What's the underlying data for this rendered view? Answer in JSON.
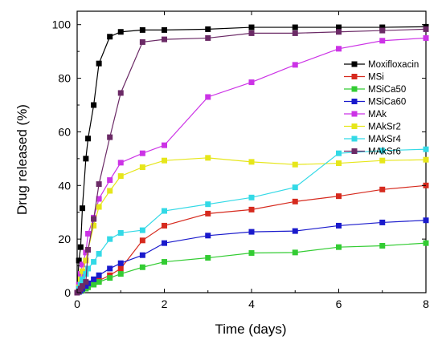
{
  "chart_data": {
    "type": "line",
    "title": "",
    "xlabel": "Time (days)",
    "ylabel": "Drug released (%)",
    "xlim": [
      0,
      8
    ],
    "ylim": [
      0,
      105
    ],
    "xticks": [
      0,
      2,
      4,
      6,
      8
    ],
    "yticks": [
      0,
      20,
      40,
      60,
      80,
      100
    ],
    "x_tick_labels": [
      "0",
      "2",
      "4",
      "6",
      "8"
    ],
    "y_tick_labels": [
      "0",
      "20",
      "40",
      "60",
      "80",
      "100"
    ],
    "grid": false,
    "legend_position": "right",
    "series": [
      {
        "name": "Moxifloxacin",
        "color": "#000000",
        "marker": "square",
        "points": [
          [
            0,
            0
          ],
          [
            0.04,
            12
          ],
          [
            0.08,
            17
          ],
          [
            0.12,
            31.5
          ],
          [
            0.2,
            50
          ],
          [
            0.25,
            57.5
          ],
          [
            0.38,
            70
          ],
          [
            0.5,
            85.5
          ],
          [
            0.75,
            95.5
          ],
          [
            1,
            97.3
          ],
          [
            1.5,
            98
          ],
          [
            2,
            98
          ],
          [
            3,
            98.3
          ],
          [
            4,
            99
          ],
          [
            5,
            99
          ],
          [
            6,
            99
          ],
          [
            7,
            99
          ],
          [
            8,
            99.2
          ]
        ]
      },
      {
        "name": "MSi",
        "color": "#d62a1e",
        "marker": "square",
        "points": [
          [
            0,
            0
          ],
          [
            0.04,
            0.5
          ],
          [
            0.08,
            1
          ],
          [
            0.12,
            1.5
          ],
          [
            0.2,
            2
          ],
          [
            0.25,
            2.5
          ],
          [
            0.38,
            3.5
          ],
          [
            0.5,
            4.5
          ],
          [
            0.75,
            6.5
          ],
          [
            1,
            9
          ],
          [
            1.5,
            19.5
          ],
          [
            2,
            25
          ],
          [
            3,
            29.5
          ],
          [
            4,
            31
          ],
          [
            5,
            34
          ],
          [
            6,
            36
          ],
          [
            7,
            38.5
          ],
          [
            8,
            40
          ]
        ]
      },
      {
        "name": "MSiCa50",
        "color": "#33cc33",
        "marker": "square",
        "points": [
          [
            0,
            0
          ],
          [
            0.04,
            0.3
          ],
          [
            0.08,
            0.6
          ],
          [
            0.12,
            1
          ],
          [
            0.2,
            1.5
          ],
          [
            0.25,
            2
          ],
          [
            0.38,
            3
          ],
          [
            0.5,
            4
          ],
          [
            0.75,
            5.5
          ],
          [
            1,
            7
          ],
          [
            1.5,
            9.5
          ],
          [
            2,
            11.5
          ],
          [
            3,
            13
          ],
          [
            4,
            14.8
          ],
          [
            5,
            15
          ],
          [
            6,
            17
          ],
          [
            7,
            17.5
          ],
          [
            8,
            18.5
          ]
        ]
      },
      {
        "name": "MSiCa60",
        "color": "#1a1acc",
        "marker": "square",
        "points": [
          [
            0,
            0
          ],
          [
            0.04,
            0.3
          ],
          [
            0.08,
            0.8
          ],
          [
            0.12,
            1.5
          ],
          [
            0.2,
            2.5
          ],
          [
            0.25,
            3.5
          ],
          [
            0.38,
            5
          ],
          [
            0.5,
            6.5
          ],
          [
            0.75,
            9
          ],
          [
            1,
            11
          ],
          [
            1.5,
            14
          ],
          [
            2,
            18.5
          ],
          [
            3,
            21.3
          ],
          [
            4,
            22.7
          ],
          [
            5,
            23
          ],
          [
            6,
            25
          ],
          [
            7,
            26.2
          ],
          [
            8,
            27
          ]
        ]
      },
      {
        "name": "MAk",
        "color": "#cc33e6",
        "marker": "square",
        "points": [
          [
            0,
            0
          ],
          [
            0.04,
            3
          ],
          [
            0.08,
            7
          ],
          [
            0.12,
            10.5
          ],
          [
            0.2,
            15
          ],
          [
            0.25,
            22
          ],
          [
            0.38,
            28
          ],
          [
            0.5,
            35
          ],
          [
            0.75,
            42
          ],
          [
            1,
            48.5
          ],
          [
            1.5,
            52
          ],
          [
            2,
            55
          ],
          [
            3,
            73
          ],
          [
            4,
            78.5
          ],
          [
            5,
            85
          ],
          [
            6,
            91
          ],
          [
            7,
            94
          ],
          [
            8,
            95
          ]
        ]
      },
      {
        "name": "MAkSr2",
        "color": "#e6e61a",
        "marker": "square",
        "points": [
          [
            0,
            0
          ],
          [
            0.04,
            2
          ],
          [
            0.08,
            5
          ],
          [
            0.12,
            8
          ],
          [
            0.2,
            12
          ],
          [
            0.25,
            16
          ],
          [
            0.38,
            25
          ],
          [
            0.5,
            32
          ],
          [
            0.75,
            38
          ],
          [
            1,
            43.5
          ],
          [
            1.5,
            46.8
          ],
          [
            2,
            49.3
          ],
          [
            3,
            50.3
          ],
          [
            4,
            48.8
          ],
          [
            5,
            47.8
          ],
          [
            6,
            48.3
          ],
          [
            7,
            49.3
          ],
          [
            8,
            49.6
          ]
        ]
      },
      {
        "name": "MAkSr4",
        "color": "#33d9e6",
        "marker": "square",
        "points": [
          [
            0,
            0
          ],
          [
            0.04,
            1.5
          ],
          [
            0.08,
            3
          ],
          [
            0.12,
            5
          ],
          [
            0.2,
            7
          ],
          [
            0.25,
            9
          ],
          [
            0.38,
            11.5
          ],
          [
            0.5,
            14.5
          ],
          [
            0.75,
            20
          ],
          [
            1,
            22.3
          ],
          [
            1.5,
            23.3
          ],
          [
            2,
            30.5
          ],
          [
            3,
            33
          ],
          [
            4,
            35.5
          ],
          [
            5,
            39.3
          ],
          [
            6,
            52
          ],
          [
            7,
            53
          ],
          [
            8,
            53.5
          ]
        ]
      },
      {
        "name": "MAkSr6",
        "color": "#6b2a66",
        "marker": "square",
        "points": [
          [
            0,
            0
          ],
          [
            0.04,
            0.5
          ],
          [
            0.08,
            1.5
          ],
          [
            0.12,
            2.5
          ],
          [
            0.2,
            4
          ],
          [
            0.25,
            16
          ],
          [
            0.38,
            27.5
          ],
          [
            0.5,
            40.5
          ],
          [
            0.75,
            58
          ],
          [
            1,
            74.5
          ],
          [
            1.5,
            93.5
          ],
          [
            2,
            94.5
          ],
          [
            3,
            95
          ],
          [
            4,
            96.8
          ],
          [
            5,
            96.8
          ],
          [
            6,
            97.3
          ],
          [
            7,
            97.8
          ],
          [
            8,
            98.3
          ]
        ]
      }
    ]
  }
}
